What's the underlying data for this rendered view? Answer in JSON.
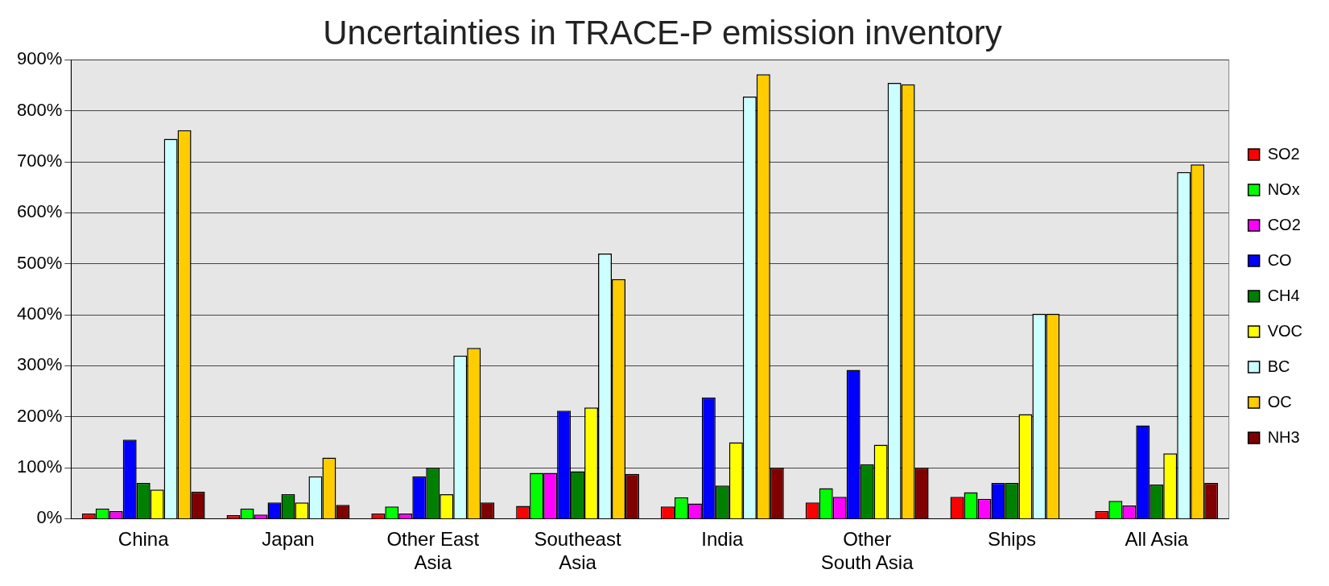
{
  "chart_data": {
    "type": "bar",
    "title": "Uncertainties in TRACE-P emission inventory",
    "categories": [
      "China",
      "Japan",
      "Other East Asia",
      "Southeast Asia",
      "India",
      "Other South Asia",
      "Ships",
      "All Asia"
    ],
    "series": [
      {
        "name": "SO2",
        "color": "#ff0000",
        "values": [
          10,
          7,
          10,
          25,
          24,
          32,
          43,
          15
        ]
      },
      {
        "name": "NOx",
        "color": "#00ff00",
        "values": [
          20,
          20,
          24,
          90,
          42,
          60,
          52,
          35
        ]
      },
      {
        "name": "CO2",
        "color": "#ff00ff",
        "values": [
          15,
          8,
          10,
          90,
          30,
          43,
          39,
          26
        ]
      },
      {
        "name": "CO",
        "color": "#0000ff",
        "values": [
          155,
          32,
          83,
          212,
          238,
          292,
          70,
          183
        ]
      },
      {
        "name": "CH4",
        "color": "#008000",
        "values": [
          70,
          48,
          100,
          93,
          65,
          107,
          70,
          67
        ]
      },
      {
        "name": "VOC",
        "color": "#ffff00",
        "values": [
          57,
          32,
          48,
          218,
          150,
          145,
          205,
          128
        ]
      },
      {
        "name": "BC",
        "color": "#ccffff",
        "values": [
          745,
          83,
          320,
          520,
          828,
          855,
          402,
          680
        ]
      },
      {
        "name": "OC",
        "color": "#ffcc00",
        "values": [
          762,
          120,
          335,
          470,
          872,
          852,
          402,
          695
        ]
      },
      {
        "name": "NH3",
        "color": "#800000",
        "values": [
          53,
          27,
          32,
          88,
          100,
          100,
          null,
          70
        ]
      }
    ],
    "ylim": [
      0,
      900
    ],
    "yticks": [
      {
        "value": 0,
        "label": "0%"
      },
      {
        "value": 100,
        "label": "100%"
      },
      {
        "value": 200,
        "label": "200%"
      },
      {
        "value": 300,
        "label": "300%"
      },
      {
        "value": 400,
        "label": "400%"
      },
      {
        "value": 500,
        "label": "500%"
      },
      {
        "value": 600,
        "label": "600%"
      },
      {
        "value": 700,
        "label": "700%"
      },
      {
        "value": 800,
        "label": "800%"
      },
      {
        "value": 900,
        "label": "900%"
      }
    ],
    "grid": "y",
    "legend": "right"
  }
}
